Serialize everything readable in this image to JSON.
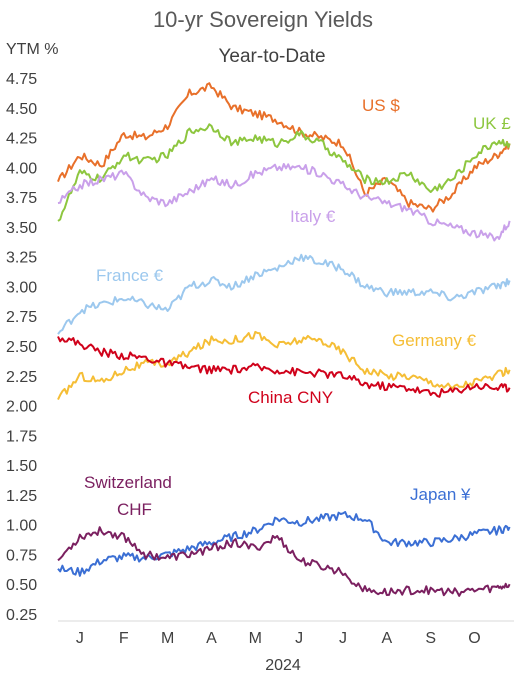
{
  "chart_data": {
    "type": "line",
    "title": "10-yr Sovereign Yields",
    "subtitle": "Year-to-Date",
    "ylabel": "YTM %",
    "xlabel": "2024",
    "ylim": [
      0.25,
      4.75
    ],
    "yticks": [
      "4.75",
      "4.50",
      "4.25",
      "4.00",
      "3.75",
      "3.50",
      "3.25",
      "3.00",
      "2.75",
      "2.50",
      "2.25",
      "2.00",
      "1.75",
      "1.50",
      "1.25",
      "1.00",
      "0.75",
      "0.50",
      "0.25"
    ],
    "xlim": [
      0,
      10.4
    ],
    "months": [
      "J",
      "F",
      "M",
      "A",
      "M",
      "J",
      "J",
      "A",
      "S",
      "O"
    ],
    "grid": false,
    "legend": "inline labels",
    "series": [
      {
        "name": "US $",
        "color": "#E8702A",
        "points": [
          [
            0,
            3.88
          ],
          [
            0.5,
            4.1
          ],
          [
            1,
            4.02
          ],
          [
            1.5,
            4.28
          ],
          [
            2,
            4.25
          ],
          [
            2.5,
            4.35
          ],
          [
            3,
            4.62
          ],
          [
            3.5,
            4.68
          ],
          [
            4,
            4.5
          ],
          [
            4.5,
            4.45
          ],
          [
            5,
            4.4
          ],
          [
            5.5,
            4.3
          ],
          [
            6,
            4.25
          ],
          [
            6.5,
            4.2
          ],
          [
            7,
            3.78
          ],
          [
            7.5,
            3.9
          ],
          [
            8,
            3.7
          ],
          [
            8.5,
            3.65
          ],
          [
            9,
            3.78
          ],
          [
            9.5,
            4.0
          ],
          [
            10,
            4.1
          ],
          [
            10.3,
            4.2
          ]
        ]
      },
      {
        "name": "UK £",
        "color": "#8DC63F",
        "points": [
          [
            0,
            3.55
          ],
          [
            0.5,
            3.95
          ],
          [
            1,
            3.9
          ],
          [
            1.5,
            4.1
          ],
          [
            2,
            4.05
          ],
          [
            2.5,
            4.1
          ],
          [
            3,
            4.3
          ],
          [
            3.5,
            4.35
          ],
          [
            4,
            4.2
          ],
          [
            4.5,
            4.25
          ],
          [
            5,
            4.2
          ],
          [
            5.5,
            4.28
          ],
          [
            6,
            4.2
          ],
          [
            6.5,
            4.05
          ],
          [
            7,
            3.9
          ],
          [
            7.5,
            3.88
          ],
          [
            8,
            3.95
          ],
          [
            8.5,
            3.8
          ],
          [
            9,
            3.9
          ],
          [
            9.5,
            4.1
          ],
          [
            10,
            4.22
          ],
          [
            10.3,
            4.2
          ]
        ]
      },
      {
        "name": "Italy €",
        "color": "#C9A0EA",
        "points": [
          [
            0,
            3.7
          ],
          [
            0.5,
            3.85
          ],
          [
            1,
            3.9
          ],
          [
            1.5,
            3.95
          ],
          [
            2,
            3.75
          ],
          [
            2.5,
            3.7
          ],
          [
            3,
            3.8
          ],
          [
            3.5,
            3.9
          ],
          [
            4,
            3.85
          ],
          [
            4.5,
            3.95
          ],
          [
            5,
            4.0
          ],
          [
            5.5,
            4.0
          ],
          [
            6,
            3.95
          ],
          [
            6.5,
            3.85
          ],
          [
            7,
            3.75
          ],
          [
            7.5,
            3.7
          ],
          [
            8,
            3.65
          ],
          [
            8.5,
            3.55
          ],
          [
            9,
            3.5
          ],
          [
            9.5,
            3.45
          ],
          [
            10,
            3.4
          ],
          [
            10.3,
            3.55
          ]
        ]
      },
      {
        "name": "France €",
        "color": "#9CC8EE",
        "points": [
          [
            0,
            2.6
          ],
          [
            0.5,
            2.8
          ],
          [
            1,
            2.85
          ],
          [
            1.5,
            2.9
          ],
          [
            2,
            2.85
          ],
          [
            2.5,
            2.8
          ],
          [
            3,
            3.0
          ],
          [
            3.5,
            3.05
          ],
          [
            4,
            3.0
          ],
          [
            4.5,
            3.1
          ],
          [
            5,
            3.15
          ],
          [
            5.5,
            3.25
          ],
          [
            6,
            3.2
          ],
          [
            6.5,
            3.15
          ],
          [
            7,
            3.0
          ],
          [
            7.5,
            2.95
          ],
          [
            8,
            2.95
          ],
          [
            8.5,
            2.95
          ],
          [
            9,
            2.9
          ],
          [
            9.5,
            2.95
          ],
          [
            10,
            3.0
          ],
          [
            10.3,
            3.05
          ]
        ]
      },
      {
        "name": "Germany €",
        "color": "#F5BE36",
        "points": [
          [
            0,
            2.05
          ],
          [
            0.5,
            2.25
          ],
          [
            1,
            2.2
          ],
          [
            1.5,
            2.3
          ],
          [
            2,
            2.35
          ],
          [
            2.5,
            2.35
          ],
          [
            3,
            2.45
          ],
          [
            3.5,
            2.55
          ],
          [
            4,
            2.55
          ],
          [
            4.5,
            2.6
          ],
          [
            5,
            2.5
          ],
          [
            5.5,
            2.55
          ],
          [
            6,
            2.55
          ],
          [
            6.5,
            2.45
          ],
          [
            7,
            2.3
          ],
          [
            7.5,
            2.25
          ],
          [
            8,
            2.25
          ],
          [
            8.5,
            2.2
          ],
          [
            9,
            2.15
          ],
          [
            9.5,
            2.2
          ],
          [
            10,
            2.25
          ],
          [
            10.3,
            2.3
          ]
        ]
      },
      {
        "name": "China CNY",
        "color": "#D0021B",
        "points": [
          [
            0,
            2.58
          ],
          [
            0.5,
            2.52
          ],
          [
            1,
            2.45
          ],
          [
            1.5,
            2.42
          ],
          [
            2,
            2.4
          ],
          [
            2.5,
            2.35
          ],
          [
            3,
            2.32
          ],
          [
            3.5,
            2.3
          ],
          [
            4,
            2.3
          ],
          [
            4.5,
            2.32
          ],
          [
            5,
            2.3
          ],
          [
            5.5,
            2.28
          ],
          [
            6,
            2.27
          ],
          [
            6.5,
            2.25
          ],
          [
            7,
            2.18
          ],
          [
            7.5,
            2.16
          ],
          [
            8,
            2.15
          ],
          [
            8.5,
            2.1
          ],
          [
            9,
            2.12
          ],
          [
            9.5,
            2.17
          ],
          [
            10,
            2.15
          ],
          [
            10.3,
            2.15
          ]
        ]
      },
      {
        "name": "Japan ¥",
        "color": "#3B6FD4",
        "points": [
          [
            0,
            0.63
          ],
          [
            0.5,
            0.6
          ],
          [
            1,
            0.7
          ],
          [
            1.5,
            0.73
          ],
          [
            2,
            0.72
          ],
          [
            2.5,
            0.75
          ],
          [
            3,
            0.8
          ],
          [
            3.5,
            0.85
          ],
          [
            4,
            0.9
          ],
          [
            4.5,
            0.95
          ],
          [
            5,
            1.05
          ],
          [
            5.5,
            1.02
          ],
          [
            6,
            1.05
          ],
          [
            6.5,
            1.08
          ],
          [
            7,
            1.05
          ],
          [
            7.5,
            0.85
          ],
          [
            8,
            0.85
          ],
          [
            8.5,
            0.85
          ],
          [
            9,
            0.88
          ],
          [
            9.5,
            0.92
          ],
          [
            10,
            0.95
          ],
          [
            10.3,
            0.98
          ]
        ]
      },
      {
        "name": "Switzerland CHF",
        "color": "#7B2060",
        "points": [
          [
            0,
            0.7
          ],
          [
            0.5,
            0.9
          ],
          [
            1,
            0.95
          ],
          [
            1.5,
            0.9
          ],
          [
            2,
            0.75
          ],
          [
            2.5,
            0.72
          ],
          [
            3,
            0.75
          ],
          [
            3.5,
            0.8
          ],
          [
            4,
            0.85
          ],
          [
            4.5,
            0.8
          ],
          [
            5,
            0.9
          ],
          [
            5.5,
            0.7
          ],
          [
            6,
            0.65
          ],
          [
            6.5,
            0.6
          ],
          [
            7,
            0.45
          ],
          [
            7.5,
            0.43
          ],
          [
            8,
            0.45
          ],
          [
            8.5,
            0.45
          ],
          [
            9,
            0.43
          ],
          [
            9.5,
            0.45
          ],
          [
            10,
            0.47
          ],
          [
            10.3,
            0.5
          ]
        ]
      }
    ]
  }
}
